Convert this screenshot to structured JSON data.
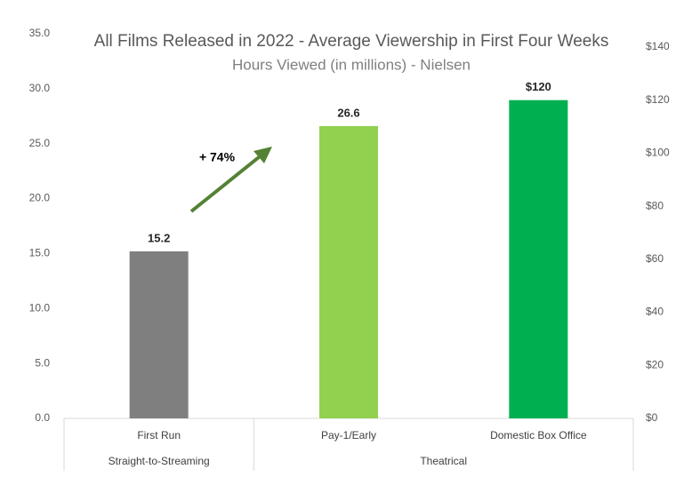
{
  "chart_data": {
    "type": "bar",
    "title": "All Films Released in 2022 - Average Viewership in First Four Weeks",
    "subtitle": "Hours Viewed (in millions) - Nielsen",
    "categories": [
      "First Run",
      "Pay-1/Early",
      "Domestic Box Office"
    ],
    "values": [
      15.2,
      26.6,
      120
    ],
    "value_labels": [
      "15.2",
      "26.6",
      "$120"
    ],
    "value_axes": [
      "y",
      "y",
      "y2"
    ],
    "colors": [
      "#7f7f7f",
      "#92d050",
      "#00b050"
    ],
    "groups": [
      {
        "label": "Straight-to-Streaming",
        "count": 1
      },
      {
        "label": "Theatrical",
        "count": 2
      }
    ],
    "ylim": [
      0,
      35
    ],
    "yticks": [
      {
        "value": 0,
        "label": "0.0"
      },
      {
        "value": 5,
        "label": "5.0"
      },
      {
        "value": 10,
        "label": "10.0"
      },
      {
        "value": 15,
        "label": "15.0"
      },
      {
        "value": 20,
        "label": "20.0"
      },
      {
        "value": 25,
        "label": "25.0"
      },
      {
        "value": 30,
        "label": "30.0"
      },
      {
        "value": 35,
        "label": "35.0"
      }
    ],
    "y2lim": [
      0,
      140
    ],
    "y2ticks": [
      {
        "value": 0,
        "label": "$0"
      },
      {
        "value": 20,
        "label": "$20"
      },
      {
        "value": 40,
        "label": "$40"
      },
      {
        "value": 60,
        "label": "$60"
      },
      {
        "value": 80,
        "label": "$80"
      },
      {
        "value": 100,
        "label": "$100"
      },
      {
        "value": 120,
        "label": "$120"
      },
      {
        "value": 140,
        "label": "$140"
      }
    ],
    "annotation": "+ 74%",
    "annotation_color": "#548235"
  }
}
